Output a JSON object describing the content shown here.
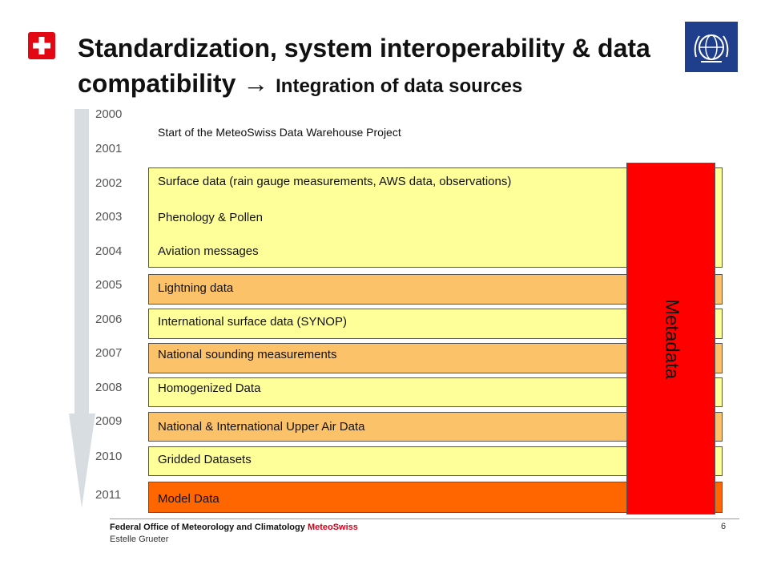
{
  "title": {
    "main": "Standardization, system interoperability & data compatibility",
    "arrow": "→",
    "sub": "Integration of data sources"
  },
  "timeline": {
    "years": [
      "2000",
      "2001",
      "2002",
      "2003",
      "2004",
      "2005",
      "2006",
      "2007",
      "2008",
      "2009",
      "2010",
      "2011"
    ]
  },
  "intro_text": "Start of the MeteoSwiss Data Warehouse Project",
  "blocks": {
    "surface": "Surface data (rain gauge measurements, AWS data, observations)",
    "phenology": "Phenology & Pollen",
    "aviation": "Aviation messages",
    "lightning": "Lightning data",
    "synop": "International surface data (SYNOP)",
    "sounding": "National sounding measurements",
    "homogenized": "Homogenized Data",
    "upper_air": "National & International Upper Air Data",
    "gridded": "Gridded Datasets",
    "model": "Model Data"
  },
  "metadata_label": "Metadata",
  "colors": {
    "yellow": "#ffff99",
    "tan": "#fcc26a",
    "orange": "#ff6600",
    "metadata": "#ff0000",
    "arrow": "#d8dde2"
  },
  "footer": {
    "office": "Federal Office of Meteorology and Climatology",
    "brand": "MeteoSwiss",
    "author": "Estelle Grueter",
    "page": "6"
  }
}
